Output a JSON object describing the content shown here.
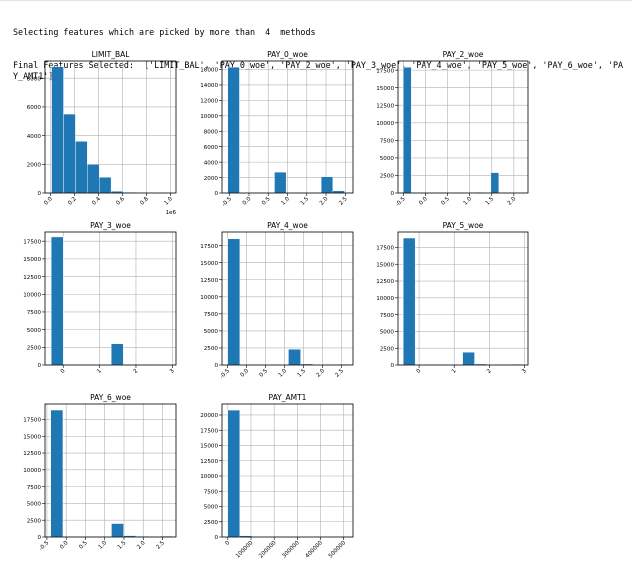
{
  "output": {
    "line1": "Selecting features which are picked by more than  4  methods",
    "line2": "Final Features Selected:  ['LIMIT_BAL', 'PAY_0_woe', 'PAY_2_woe', 'PAY_3_woe', 'PAY_4_woe', 'PAY_5_woe', 'PAY_6_woe', 'PAY_AMT1']"
  },
  "colors": {
    "bar": "#1f77b4",
    "grid": "#b0b0b0"
  },
  "chart_data": [
    {
      "type": "bar",
      "title": "LIMIT_BAL",
      "xlim": [
        -0.045,
        1.045
      ],
      "ylim": [
        0,
        9200
      ],
      "xticks": [
        0.0,
        0.2,
        0.4,
        0.6,
        0.8,
        1.0
      ],
      "xtick_labels": [
        "0.0",
        "0.2",
        "0.4",
        "0.6",
        "0.8",
        "1.0"
      ],
      "yticks": [
        0,
        2000,
        4000,
        6000,
        8000
      ],
      "ytick_labels": [
        "0",
        "2000",
        "4000",
        "6000",
        "8000"
      ],
      "x_offset_label": "1e6",
      "bin_edges": [
        0.01,
        0.109,
        0.208,
        0.307,
        0.406,
        0.505,
        0.604,
        0.703,
        0.802,
        0.901,
        1.0
      ],
      "counts": [
        8800,
        5500,
        3600,
        2000,
        1100,
        120,
        45,
        10,
        3,
        2
      ]
    },
    {
      "type": "bar",
      "title": "PAY_0_woe",
      "xlim": [
        -0.7,
        2.7
      ],
      "ylim": [
        0,
        17100
      ],
      "xticks": [
        -0.5,
        0.0,
        0.5,
        1.0,
        1.5,
        2.0,
        2.5
      ],
      "xtick_labels": [
        "-0.5",
        "0.0",
        "0.5",
        "1.0",
        "1.5",
        "2.0",
        "2.5"
      ],
      "yticks": [
        0,
        2000,
        4000,
        6000,
        8000,
        10000,
        12000,
        14000,
        16000
      ],
      "ytick_labels": [
        "0",
        "2000",
        "4000",
        "6000",
        "8000",
        "10000",
        "12000",
        "14000",
        "16000"
      ],
      "bin_edges": [
        -0.55,
        -0.247,
        0.056,
        0.359,
        0.662,
        0.965,
        1.268,
        1.571,
        1.874,
        2.177,
        2.48
      ],
      "counts": [
        16300,
        0,
        0,
        0,
        2700,
        0,
        0,
        0,
        2100,
        280
      ]
    },
    {
      "type": "bar",
      "title": "PAY_2_woe",
      "xlim": [
        -0.62,
        2.32
      ],
      "ylim": [
        0,
        18800
      ],
      "xticks": [
        -0.5,
        0.0,
        0.5,
        1.0,
        1.5,
        2.0
      ],
      "xtick_labels": [
        "-0.5",
        "0.0",
        "0.5",
        "1.0",
        "1.5",
        "2.0"
      ],
      "yticks": [
        0,
        2500,
        5000,
        7500,
        10000,
        12500,
        15000,
        17500
      ],
      "ytick_labels": [
        "0",
        "2500",
        "5000",
        "7500",
        "10000",
        "12500",
        "15000",
        "17500"
      ],
      "bin_edges": [
        -0.5,
        -0.32,
        -0.14,
        0.04,
        0.22,
        0.4,
        0.58,
        0.76,
        0.94,
        1.12,
        1.3,
        1.48,
        1.66,
        1.84,
        2.02,
        2.2
      ],
      "counts": [
        17900,
        0,
        0,
        0,
        0,
        0,
        0,
        0,
        0,
        100,
        0,
        2900,
        0,
        0,
        60
      ]
    },
    {
      "type": "bar",
      "title": "PAY_3_woe",
      "xlim": [
        -0.5,
        3.1
      ],
      "ylim": [
        0,
        18800
      ],
      "xticks": [
        0,
        1,
        2,
        3
      ],
      "xtick_labels": [
        "0",
        "1",
        "2",
        "3"
      ],
      "yticks": [
        0,
        2500,
        5000,
        7500,
        10000,
        12500,
        15000,
        17500
      ],
      "ytick_labels": [
        "0",
        "2500",
        "5000",
        "7500",
        "10000",
        "12500",
        "15000",
        "17500"
      ],
      "bin_edges": [
        -0.33,
        0.0,
        0.33,
        0.66,
        0.99,
        1.32,
        1.65,
        1.98,
        2.31,
        2.64,
        2.97
      ],
      "counts": [
        18100,
        0,
        0,
        0,
        0,
        3000,
        0,
        0,
        0,
        40
      ]
    },
    {
      "type": "bar",
      "title": "PAY_4_woe",
      "xlim": [
        -0.65,
        2.8
      ],
      "ylim": [
        0,
        19500
      ],
      "xticks": [
        -0.5,
        0.0,
        0.5,
        1.0,
        1.5,
        2.0,
        2.5
      ],
      "xtick_labels": [
        "-0.5",
        "0.0",
        "0.5",
        "1.0",
        "1.5",
        "2.0",
        "2.5"
      ],
      "yticks": [
        0,
        2500,
        5000,
        7500,
        10000,
        12500,
        15000,
        17500
      ],
      "ytick_labels": [
        "0",
        "2500",
        "5000",
        "7500",
        "10000",
        "12500",
        "15000",
        "17500"
      ],
      "bin_edges": [
        -0.5,
        -0.18,
        0.14,
        0.46,
        0.78,
        1.1,
        1.42,
        1.74,
        2.06,
        2.38,
        2.7
      ],
      "counts": [
        18500,
        0,
        0,
        0,
        0,
        2300,
        150,
        60,
        0,
        100
      ]
    },
    {
      "type": "bar",
      "title": "PAY_5_woe",
      "xlim": [
        -0.6,
        3.1
      ],
      "ylim": [
        0,
        19800
      ],
      "xticks": [
        0,
        1,
        2,
        3
      ],
      "xtick_labels": [
        "0",
        "1",
        "2",
        "3"
      ],
      "yticks": [
        0,
        2500,
        5000,
        7500,
        10000,
        12500,
        15000,
        17500
      ],
      "ytick_labels": [
        "0",
        "2500",
        "5000",
        "7500",
        "10000",
        "12500",
        "15000",
        "17500"
      ],
      "bin_edges": [
        -0.45,
        -0.112,
        0.226,
        0.564,
        0.902,
        1.24,
        1.578,
        1.916,
        2.254,
        2.592,
        2.93
      ],
      "counts": [
        18900,
        0,
        0,
        0,
        0,
        1900,
        150,
        0,
        0,
        100
      ]
    },
    {
      "type": "bar",
      "title": "PAY_6_woe",
      "xlim": [
        -0.55,
        2.85
      ],
      "ylim": [
        0,
        19800
      ],
      "xticks": [
        -0.5,
        0.0,
        0.5,
        1.0,
        1.5,
        2.0,
        2.5
      ],
      "xtick_labels": [
        "-0.5",
        "0.0",
        "0.5",
        "1.0",
        "1.5",
        "2.0",
        "2.5"
      ],
      "yticks": [
        0,
        2500,
        5000,
        7500,
        10000,
        12500,
        15000,
        17500
      ],
      "ytick_labels": [
        "0",
        "2500",
        "5000",
        "7500",
        "10000",
        "12500",
        "15000",
        "17500"
      ],
      "bin_edges": [
        -0.4,
        -0.085,
        0.23,
        0.545,
        0.86,
        1.175,
        1.49,
        1.805,
        2.12,
        2.435,
        2.75
      ],
      "counts": [
        18900,
        0,
        0,
        0,
        0,
        2000,
        200,
        100,
        0,
        130
      ]
    },
    {
      "type": "bar",
      "title": "PAY_AMT1",
      "xlim": [
        -25000,
        540000
      ],
      "ylim": [
        0,
        21800
      ],
      "xticks": [
        0,
        100000,
        200000,
        300000,
        400000,
        500000
      ],
      "xtick_labels": [
        "0",
        "100000",
        "200000",
        "300000",
        "400000",
        "500000"
      ],
      "yticks": [
        0,
        2500,
        5000,
        7500,
        10000,
        12500,
        15000,
        17500,
        20000
      ],
      "ytick_labels": [
        "0",
        "2500",
        "5000",
        "7500",
        "10000",
        "12500",
        "15000",
        "17500",
        "20000"
      ],
      "bin_edges": [
        0,
        51500,
        103000,
        154500,
        206000,
        257500,
        309000,
        360500,
        412000,
        463500,
        515000
      ],
      "counts": [
        20800,
        200,
        60,
        20,
        8,
        4,
        2,
        1,
        1,
        1
      ]
    }
  ]
}
